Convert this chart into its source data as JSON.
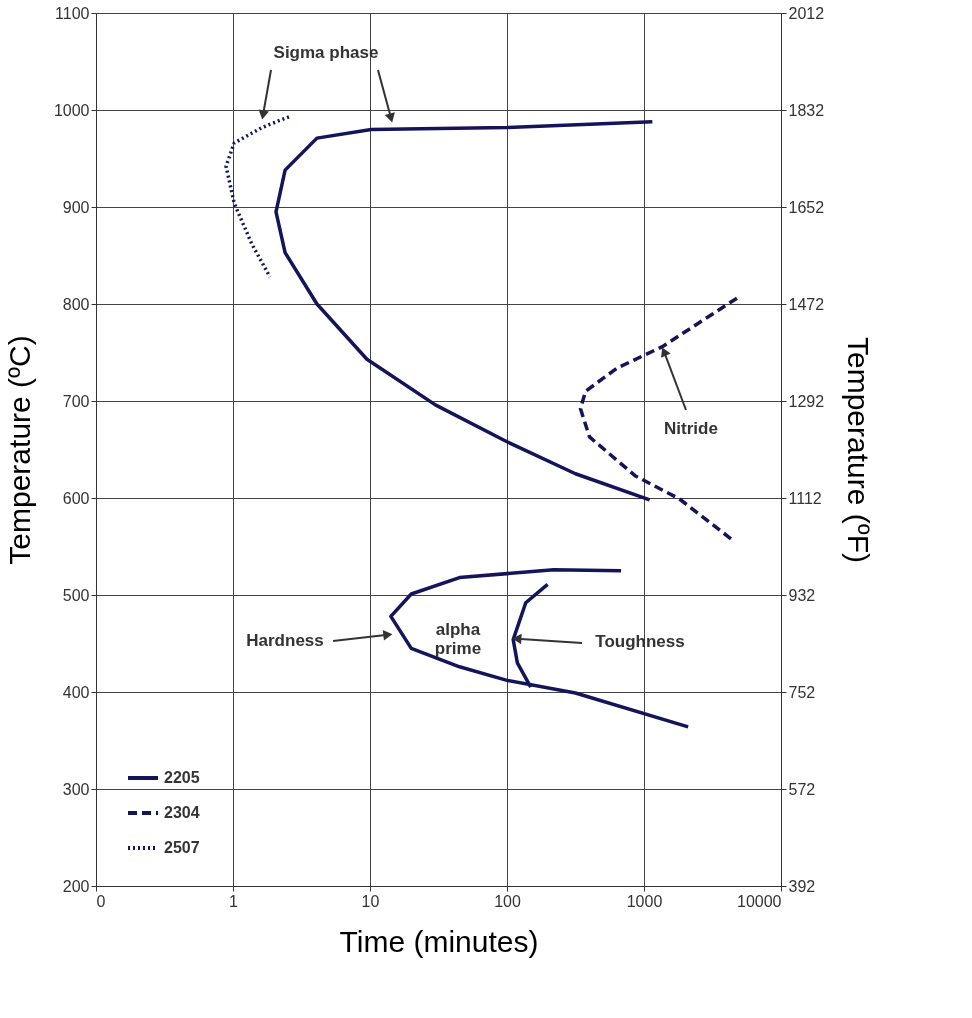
{
  "chart_data": {
    "type": "line",
    "xlabel": "Time (minutes)",
    "ylabel": "Temperature (ºC)",
    "y2label": "Temperature (ºF)",
    "log": "x",
    "grid": true,
    "legend": "bottom left",
    "xlim": [
      0.1,
      10000
    ],
    "xticks": [
      {
        "value": 0.1,
        "label": "0"
      },
      1,
      10,
      100,
      1000,
      10000
    ],
    "ylim": [
      200,
      1100
    ],
    "yticks": [
      200,
      300,
      400,
      500,
      600,
      700,
      800,
      900,
      1000,
      1100
    ],
    "y2lim": [
      392,
      2012
    ],
    "y2ticks": [
      392,
      572,
      752,
      932,
      1112,
      1292,
      1472,
      1652,
      1832,
      2012
    ],
    "series": [
      {
        "name": "2205",
        "color": "#14145a",
        "line_style": "solid",
        "x": [
          1150,
          100,
          10.2,
          4.1,
          2.4,
          2.06,
          2.4,
          4.1,
          9.5,
          30,
          100,
          316,
          1100
        ],
        "values": [
          988,
          982,
          980,
          971,
          938,
          895,
          853,
          800,
          743,
          696,
          658,
          625,
          598
        ]
      },
      {
        "name": "2304",
        "color": "#14145a",
        "line_style": "dashed",
        "x": [
          4770,
          1360,
          637,
          374,
          344,
          400,
          860,
          1815,
          4400
        ],
        "values": [
          806,
          756,
          734,
          710,
          692,
          663,
          623,
          599,
          557
        ]
      },
      {
        "name": "2507",
        "color": "#14145a",
        "line_style": "dotted",
        "x": [
          2.56,
          1.63,
          1.02,
          0.89,
          1.02,
          1.37,
          1.86
        ],
        "values": [
          993,
          982,
          966,
          942,
          904,
          862,
          828
        ]
      },
      {
        "color": "#14145a",
        "line_style": "solid",
        "x": [
          680,
          219,
          45,
          20,
          14.2,
          20,
          45,
          100,
          316,
          2100
        ],
        "values": [
          525,
          526,
          518,
          501,
          478,
          445,
          426,
          412,
          399,
          364
        ]
      },
      {
        "color": "#14145a",
        "line_style": "solid",
        "x": [
          198,
          137,
          111,
          119,
          149
        ],
        "values": [
          511,
          492,
          454,
          430,
          405
        ]
      }
    ],
    "annotations": [
      "Sigma phase",
      {
        "text": "Nitride",
        "x": 1400,
        "y": 751
      },
      {
        "text": "Hardness",
        "x": 13.5,
        "y": 459
      },
      "alpha prime",
      {
        "text": "Toughness",
        "x": 118,
        "y": 455
      }
    ]
  }
}
